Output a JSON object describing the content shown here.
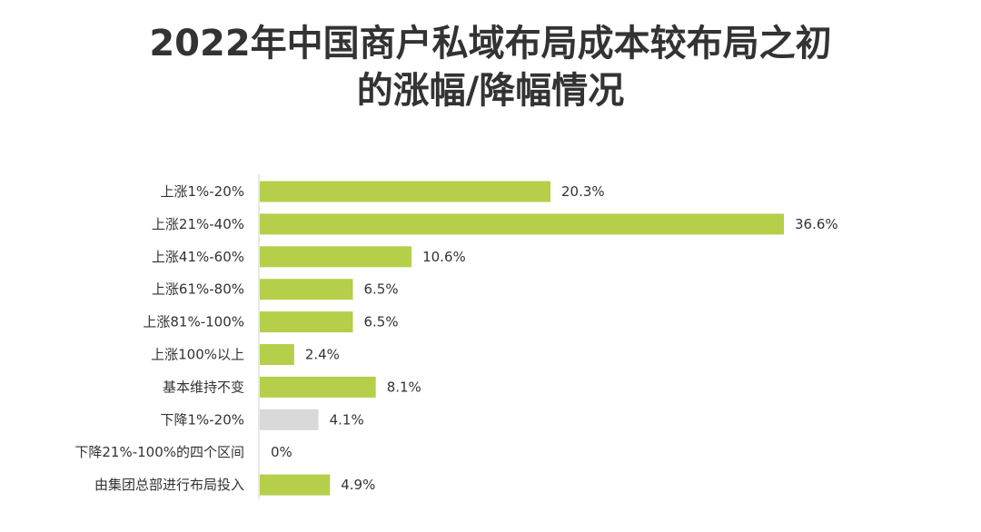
{
  "chart_data": {
    "type": "bar",
    "orientation": "horizontal",
    "title_line1": "2022年中国商户私域布局成本较布局之初",
    "title_line2": "的涨幅/降幅情况",
    "categories": [
      "上涨1%-20%",
      "上涨21%-40%",
      "上涨41%-60%",
      "上涨61%-80%",
      "上涨81%-100%",
      "上涨100%以上",
      "基本维持不变",
      "下降1%-20%",
      "下降21%-100%的四个区间",
      "由集团总部进行布局投入"
    ],
    "values": [
      20.3,
      36.6,
      10.6,
      6.5,
      6.5,
      2.4,
      8.1,
      4.1,
      0,
      4.9
    ],
    "value_labels": [
      "20.3%",
      "36.6%",
      "10.6%",
      "6.5%",
      "6.5%",
      "2.4%",
      "8.1%",
      "4.1%",
      "0%",
      "4.9%"
    ],
    "bar_colors": [
      "#b5cf4a",
      "#b5cf4a",
      "#b5cf4a",
      "#b5cf4a",
      "#b5cf4a",
      "#b5cf4a",
      "#b5cf4a",
      "#d9d9d9",
      "#b5cf4a",
      "#b5cf4a"
    ],
    "axis_color": "#d0d0d0",
    "xlim": [
      0,
      36.6
    ],
    "grid": false,
    "legend": "none"
  }
}
